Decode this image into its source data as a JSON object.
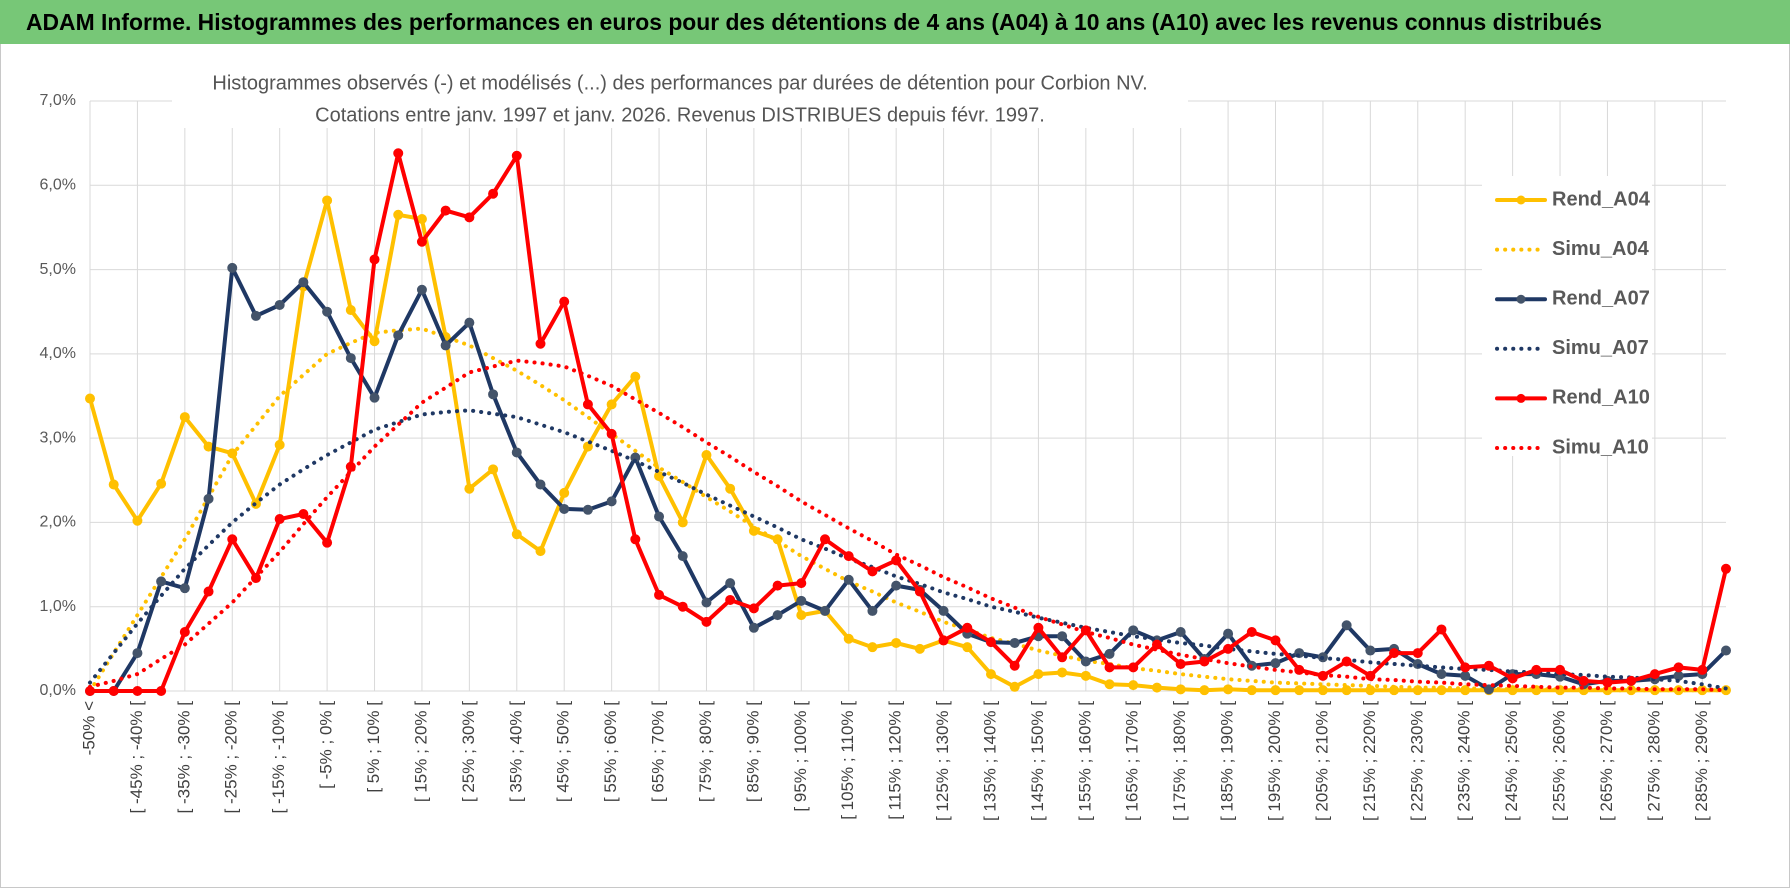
{
  "header": {
    "title": "ADAM Informe. Histogrammes des performances en euros pour des détentions de 4 ans (A04) à 10 ans (A10) avec les revenus connus distribués"
  },
  "chart_data": {
    "type": "line",
    "title": "Histogrammes observés (-) et modélisés (...) des performances par durées de détention pour Corbion NV.",
    "subtitle": "Cotations entre janv. 1997 et janv. 2026. Revenus DISTRIBUES depuis févr. 1997.",
    "categories": [
      "-50% <",
      null,
      "[ -45% ; -40% [",
      null,
      "[ -35% ; -30% [",
      null,
      "[ -25% ; -20% [",
      null,
      "[ -15% ; -10% [",
      null,
      "[ -5% ; 0% [",
      null,
      "[ 5% ; 10% [",
      null,
      "[ 15% ; 20% [",
      null,
      "[ 25% ; 30% [",
      null,
      "[ 35% ; 40% [",
      null,
      "[ 45% ; 50% [",
      null,
      "[ 55% ; 60% [",
      null,
      "[ 65% ; 70% [",
      null,
      "[ 75% ; 80% [",
      null,
      "[ 85% ; 90% [",
      null,
      "[ 95% ; 100% [",
      null,
      "[ 105% ; 110% [",
      null,
      "[ 115% ; 120% [",
      null,
      "[ 125% ; 130% [",
      null,
      "[ 135% ; 140% [",
      null,
      "[ 145% ; 150% [",
      null,
      "[ 155% ; 160% [",
      null,
      "[ 165% ; 170% [",
      null,
      "[ 175% ; 180% [",
      null,
      "[ 185% ; 190% [",
      null,
      "[ 195% ; 200% [",
      null,
      "[ 205% ; 210% [",
      null,
      "[ 215% ; 220% [",
      null,
      "[ 225% ; 230% [",
      null,
      "[ 235% ; 240% [",
      null,
      "[ 245% ; 250% [",
      null,
      "[ 255% ; 260% [",
      null,
      "[ 265% ; 270% [",
      null,
      "[ 275% ; 280% [",
      null,
      "[ 285% ; 290% [",
      null
    ],
    "series": [
      {
        "name": "Rend_A04",
        "color": "#ffc000",
        "style": "solid",
        "markers": true,
        "values": [
          3.47,
          2.45,
          2.02,
          2.46,
          3.25,
          2.9,
          2.82,
          2.22,
          2.92,
          4.8,
          5.82,
          4.52,
          4.15,
          5.65,
          5.6,
          4.2,
          2.4,
          2.63,
          1.86,
          1.66,
          2.35,
          2.9,
          3.4,
          3.73,
          2.55,
          2.0,
          2.8,
          2.4,
          1.9,
          1.8,
          0.9,
          0.95,
          0.62,
          0.52,
          0.57,
          0.5,
          0.6,
          0.52,
          0.2,
          0.05,
          0.2,
          0.22,
          0.18,
          0.08,
          0.07,
          0.04,
          0.02,
          0.01,
          0.02,
          0.01,
          0.01,
          0.01,
          0.01,
          0.01,
          0.01,
          0.01,
          0.01,
          0.01,
          0.01,
          0.01,
          0.01,
          0.01,
          0.01,
          0.01,
          0.01,
          0.01,
          0.01,
          0.01,
          0.01,
          0.01
        ]
      },
      {
        "name": "Simu_A04",
        "color": "#ffc000",
        "style": "dotted",
        "markers": false,
        "values": [
          0,
          0.45,
          0.9,
          1.35,
          1.8,
          2.3,
          2.8,
          3.15,
          3.5,
          3.75,
          4.0,
          4.13,
          4.25,
          4.28,
          4.3,
          4.2,
          4.1,
          3.95,
          3.8,
          3.63,
          3.45,
          3.25,
          3.05,
          2.85,
          2.65,
          2.48,
          2.3,
          2.13,
          1.95,
          1.78,
          1.6,
          1.45,
          1.3,
          1.18,
          1.05,
          0.94,
          0.82,
          0.73,
          0.63,
          0.56,
          0.48,
          0.42,
          0.36,
          0.32,
          0.27,
          0.24,
          0.2,
          0.17,
          0.14,
          0.12,
          0.1,
          0.09,
          0.08,
          0.07,
          0.06,
          0.05,
          0.04,
          0.04,
          0.03,
          0.03,
          0.02,
          0.02,
          0.02,
          0.02,
          0.01,
          0.01,
          0.01,
          0.01,
          0.01,
          0.01
        ]
      },
      {
        "name": "Rend_A07",
        "color": "#1f3864",
        "style": "solid",
        "markers": true,
        "values": [
          0,
          0,
          0.45,
          1.3,
          1.22,
          2.28,
          5.02,
          4.45,
          4.58,
          4.85,
          4.5,
          3.95,
          3.48,
          4.22,
          4.76,
          4.1,
          4.37,
          3.52,
          2.83,
          2.45,
          2.16,
          2.15,
          2.25,
          2.77,
          2.07,
          1.6,
          1.05,
          1.28,
          0.75,
          0.9,
          1.07,
          0.95,
          1.32,
          0.95,
          1.25,
          1.2,
          0.95,
          0.68,
          0.58,
          0.57,
          0.65,
          0.65,
          0.35,
          0.44,
          0.72,
          0.6,
          0.7,
          0.38,
          0.68,
          0.3,
          0.33,
          0.45,
          0.4,
          0.78,
          0.48,
          0.5,
          0.32,
          0.2,
          0.18,
          0.02,
          0.2,
          0.2,
          0.17,
          0.08,
          0.12,
          0.12,
          0.14,
          0.18,
          0.2,
          0.48
        ]
      },
      {
        "name": "Simu_A07",
        "color": "#1f3864",
        "style": "dotted",
        "markers": false,
        "values": [
          0.1,
          0.45,
          0.8,
          1.13,
          1.45,
          1.73,
          2.0,
          2.23,
          2.45,
          2.63,
          2.8,
          2.95,
          3.1,
          3.19,
          3.28,
          3.31,
          3.33,
          3.29,
          3.25,
          3.16,
          3.07,
          2.96,
          2.85,
          2.73,
          2.6,
          2.47,
          2.33,
          2.2,
          2.07,
          1.94,
          1.8,
          1.69,
          1.57,
          1.47,
          1.36,
          1.27,
          1.17,
          1.09,
          1.0,
          0.94,
          0.87,
          0.81,
          0.75,
          0.7,
          0.65,
          0.61,
          0.57,
          0.54,
          0.5,
          0.47,
          0.44,
          0.42,
          0.39,
          0.37,
          0.34,
          0.32,
          0.3,
          0.28,
          0.26,
          0.25,
          0.23,
          0.22,
          0.2,
          0.19,
          0.17,
          0.16,
          0.14,
          0.12,
          0.08,
          0.03
        ]
      },
      {
        "name": "Rend_A10",
        "color": "#ff0000",
        "style": "solid",
        "markers": true,
        "values": [
          0,
          0,
          0,
          0,
          0.7,
          1.18,
          1.8,
          1.34,
          2.04,
          2.1,
          1.76,
          2.66,
          5.12,
          6.38,
          5.33,
          5.7,
          5.62,
          5.9,
          6.35,
          4.12,
          4.62,
          3.4,
          3.05,
          1.8,
          1.14,
          1.0,
          0.82,
          1.08,
          0.98,
          1.25,
          1.28,
          1.8,
          1.6,
          1.42,
          1.55,
          1.18,
          0.6,
          0.75,
          0.58,
          0.3,
          0.75,
          0.4,
          0.72,
          0.28,
          0.28,
          0.55,
          0.32,
          0.35,
          0.5,
          0.7,
          0.6,
          0.25,
          0.18,
          0.35,
          0.18,
          0.45,
          0.45,
          0.73,
          0.28,
          0.3,
          0.15,
          0.25,
          0.25,
          0.12,
          0.1,
          0.12,
          0.2,
          0.28,
          0.25,
          1.45
        ]
      },
      {
        "name": "Simu_A10",
        "color": "#ff0000",
        "style": "dotted",
        "markers": false,
        "values": [
          0.05,
          0.12,
          0.2,
          0.38,
          0.55,
          0.8,
          1.05,
          1.35,
          1.65,
          1.98,
          2.3,
          2.6,
          2.9,
          3.16,
          3.42,
          3.6,
          3.78,
          3.85,
          3.92,
          3.89,
          3.85,
          3.74,
          3.62,
          3.46,
          3.3,
          3.13,
          2.95,
          2.78,
          2.6,
          2.43,
          2.25,
          2.09,
          1.93,
          1.78,
          1.62,
          1.49,
          1.35,
          1.23,
          1.1,
          0.99,
          0.88,
          0.79,
          0.7,
          0.63,
          0.55,
          0.49,
          0.43,
          0.38,
          0.33,
          0.29,
          0.25,
          0.22,
          0.19,
          0.17,
          0.14,
          0.13,
          0.11,
          0.1,
          0.08,
          0.07,
          0.06,
          0.05,
          0.04,
          0.04,
          0.03,
          0.03,
          0.02,
          0.02,
          0.02,
          0.01
        ]
      }
    ],
    "ylim": [
      0,
      7
    ],
    "yticks": [
      {
        "value": 0,
        "label": "0,0%"
      },
      {
        "value": 1,
        "label": "1,0%"
      },
      {
        "value": 2,
        "label": "2,0%"
      },
      {
        "value": 3,
        "label": "3,0%"
      },
      {
        "value": 4,
        "label": "4,0%"
      },
      {
        "value": 5,
        "label": "5,0%"
      },
      {
        "value": 6,
        "label": "6,0%"
      },
      {
        "value": 7,
        "label": "7,0%"
      }
    ],
    "grid": true,
    "legend": "right"
  }
}
